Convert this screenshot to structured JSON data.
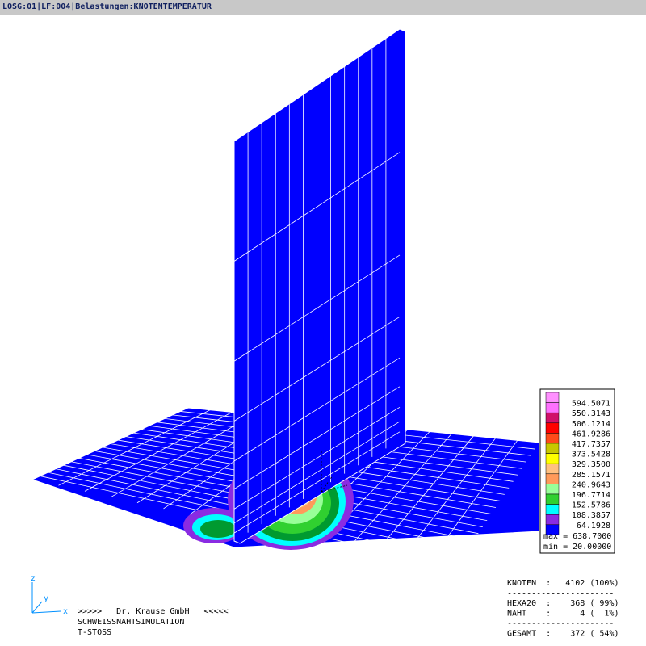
{
  "header": {
    "title": "LOSG:01|LF:004|Belastungen:KNOTENTEMPERATUR"
  },
  "legend": {
    "labels": [
      "594.5071",
      "550.3143",
      "506.1214",
      "461.9286",
      "417.7357",
      "373.5428",
      "329.3500",
      "285.1571",
      "240.9643",
      "196.7714",
      "152.5786",
      "108.3857",
      "64.1928"
    ],
    "colors": [
      "#ff70ff",
      "#d0106a",
      "#ff0000",
      "#ff4a1a",
      "#c8c800",
      "#ffff00",
      "#ffc080",
      "#ff9a5a",
      "#98ff98",
      "#30d030",
      "#00ffff",
      "#8a2be2",
      "#0000ff"
    ],
    "top_color": "#ff90ff",
    "max": "max = 638.7000",
    "min": "min = 20.00000"
  },
  "axes": {
    "z": "z",
    "y": "y",
    "x": "x"
  },
  "footer": {
    "company": ">>>>>   Dr. Krause GmbH   <<<<<",
    "line1": "SCHWEISSNAHTSIMULATION",
    "line2": "T-STOSS"
  },
  "stats": {
    "rows": [
      "KNOTEN  :   4102 (100%)",
      "----------------------",
      "HEXA20  :    368 ( 99%)",
      "NAHT    :      4 (  1%)",
      "----------------------",
      "GESAMT  :    372 ( 54%)"
    ]
  }
}
